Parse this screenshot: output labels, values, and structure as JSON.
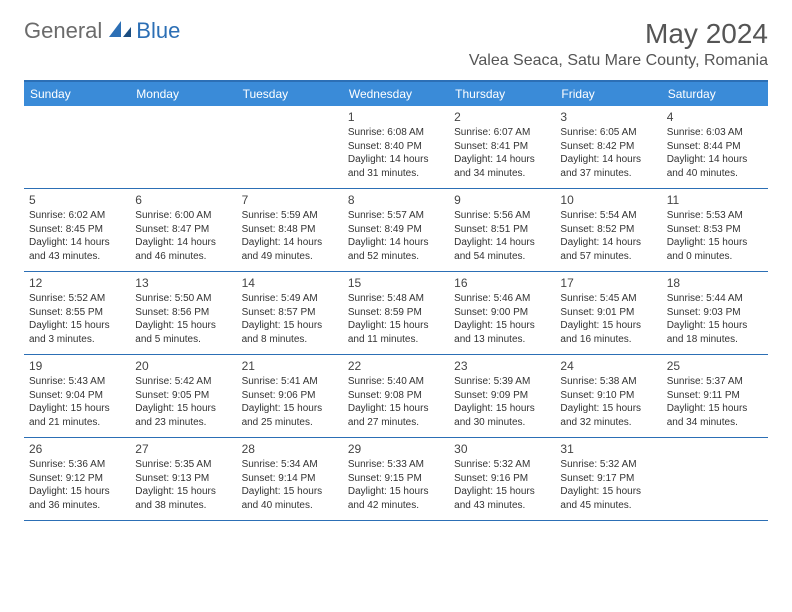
{
  "logo": {
    "general": "General",
    "blue": "Blue"
  },
  "title": "May 2024",
  "location": "Valea Seaca, Satu Mare County, Romania",
  "colors": {
    "header_bg": "#3a8bd8",
    "header_border": "#2c6fb5",
    "logo_gray": "#6b6b6b",
    "logo_blue": "#2c6fb5",
    "text": "#333333",
    "title_text": "#555555"
  },
  "day_headers": [
    "Sunday",
    "Monday",
    "Tuesday",
    "Wednesday",
    "Thursday",
    "Friday",
    "Saturday"
  ],
  "weeks": [
    [
      null,
      null,
      null,
      {
        "num": "1",
        "sunrise": "Sunrise: 6:08 AM",
        "sunset": "Sunset: 8:40 PM",
        "day1": "Daylight: 14 hours",
        "day2": "and 31 minutes."
      },
      {
        "num": "2",
        "sunrise": "Sunrise: 6:07 AM",
        "sunset": "Sunset: 8:41 PM",
        "day1": "Daylight: 14 hours",
        "day2": "and 34 minutes."
      },
      {
        "num": "3",
        "sunrise": "Sunrise: 6:05 AM",
        "sunset": "Sunset: 8:42 PM",
        "day1": "Daylight: 14 hours",
        "day2": "and 37 minutes."
      },
      {
        "num": "4",
        "sunrise": "Sunrise: 6:03 AM",
        "sunset": "Sunset: 8:44 PM",
        "day1": "Daylight: 14 hours",
        "day2": "and 40 minutes."
      }
    ],
    [
      {
        "num": "5",
        "sunrise": "Sunrise: 6:02 AM",
        "sunset": "Sunset: 8:45 PM",
        "day1": "Daylight: 14 hours",
        "day2": "and 43 minutes."
      },
      {
        "num": "6",
        "sunrise": "Sunrise: 6:00 AM",
        "sunset": "Sunset: 8:47 PM",
        "day1": "Daylight: 14 hours",
        "day2": "and 46 minutes."
      },
      {
        "num": "7",
        "sunrise": "Sunrise: 5:59 AM",
        "sunset": "Sunset: 8:48 PM",
        "day1": "Daylight: 14 hours",
        "day2": "and 49 minutes."
      },
      {
        "num": "8",
        "sunrise": "Sunrise: 5:57 AM",
        "sunset": "Sunset: 8:49 PM",
        "day1": "Daylight: 14 hours",
        "day2": "and 52 minutes."
      },
      {
        "num": "9",
        "sunrise": "Sunrise: 5:56 AM",
        "sunset": "Sunset: 8:51 PM",
        "day1": "Daylight: 14 hours",
        "day2": "and 54 minutes."
      },
      {
        "num": "10",
        "sunrise": "Sunrise: 5:54 AM",
        "sunset": "Sunset: 8:52 PM",
        "day1": "Daylight: 14 hours",
        "day2": "and 57 minutes."
      },
      {
        "num": "11",
        "sunrise": "Sunrise: 5:53 AM",
        "sunset": "Sunset: 8:53 PM",
        "day1": "Daylight: 15 hours",
        "day2": "and 0 minutes."
      }
    ],
    [
      {
        "num": "12",
        "sunrise": "Sunrise: 5:52 AM",
        "sunset": "Sunset: 8:55 PM",
        "day1": "Daylight: 15 hours",
        "day2": "and 3 minutes."
      },
      {
        "num": "13",
        "sunrise": "Sunrise: 5:50 AM",
        "sunset": "Sunset: 8:56 PM",
        "day1": "Daylight: 15 hours",
        "day2": "and 5 minutes."
      },
      {
        "num": "14",
        "sunrise": "Sunrise: 5:49 AM",
        "sunset": "Sunset: 8:57 PM",
        "day1": "Daylight: 15 hours",
        "day2": "and 8 minutes."
      },
      {
        "num": "15",
        "sunrise": "Sunrise: 5:48 AM",
        "sunset": "Sunset: 8:59 PM",
        "day1": "Daylight: 15 hours",
        "day2": "and 11 minutes."
      },
      {
        "num": "16",
        "sunrise": "Sunrise: 5:46 AM",
        "sunset": "Sunset: 9:00 PM",
        "day1": "Daylight: 15 hours",
        "day2": "and 13 minutes."
      },
      {
        "num": "17",
        "sunrise": "Sunrise: 5:45 AM",
        "sunset": "Sunset: 9:01 PM",
        "day1": "Daylight: 15 hours",
        "day2": "and 16 minutes."
      },
      {
        "num": "18",
        "sunrise": "Sunrise: 5:44 AM",
        "sunset": "Sunset: 9:03 PM",
        "day1": "Daylight: 15 hours",
        "day2": "and 18 minutes."
      }
    ],
    [
      {
        "num": "19",
        "sunrise": "Sunrise: 5:43 AM",
        "sunset": "Sunset: 9:04 PM",
        "day1": "Daylight: 15 hours",
        "day2": "and 21 minutes."
      },
      {
        "num": "20",
        "sunrise": "Sunrise: 5:42 AM",
        "sunset": "Sunset: 9:05 PM",
        "day1": "Daylight: 15 hours",
        "day2": "and 23 minutes."
      },
      {
        "num": "21",
        "sunrise": "Sunrise: 5:41 AM",
        "sunset": "Sunset: 9:06 PM",
        "day1": "Daylight: 15 hours",
        "day2": "and 25 minutes."
      },
      {
        "num": "22",
        "sunrise": "Sunrise: 5:40 AM",
        "sunset": "Sunset: 9:08 PM",
        "day1": "Daylight: 15 hours",
        "day2": "and 27 minutes."
      },
      {
        "num": "23",
        "sunrise": "Sunrise: 5:39 AM",
        "sunset": "Sunset: 9:09 PM",
        "day1": "Daylight: 15 hours",
        "day2": "and 30 minutes."
      },
      {
        "num": "24",
        "sunrise": "Sunrise: 5:38 AM",
        "sunset": "Sunset: 9:10 PM",
        "day1": "Daylight: 15 hours",
        "day2": "and 32 minutes."
      },
      {
        "num": "25",
        "sunrise": "Sunrise: 5:37 AM",
        "sunset": "Sunset: 9:11 PM",
        "day1": "Daylight: 15 hours",
        "day2": "and 34 minutes."
      }
    ],
    [
      {
        "num": "26",
        "sunrise": "Sunrise: 5:36 AM",
        "sunset": "Sunset: 9:12 PM",
        "day1": "Daylight: 15 hours",
        "day2": "and 36 minutes."
      },
      {
        "num": "27",
        "sunrise": "Sunrise: 5:35 AM",
        "sunset": "Sunset: 9:13 PM",
        "day1": "Daylight: 15 hours",
        "day2": "and 38 minutes."
      },
      {
        "num": "28",
        "sunrise": "Sunrise: 5:34 AM",
        "sunset": "Sunset: 9:14 PM",
        "day1": "Daylight: 15 hours",
        "day2": "and 40 minutes."
      },
      {
        "num": "29",
        "sunrise": "Sunrise: 5:33 AM",
        "sunset": "Sunset: 9:15 PM",
        "day1": "Daylight: 15 hours",
        "day2": "and 42 minutes."
      },
      {
        "num": "30",
        "sunrise": "Sunrise: 5:32 AM",
        "sunset": "Sunset: 9:16 PM",
        "day1": "Daylight: 15 hours",
        "day2": "and 43 minutes."
      },
      {
        "num": "31",
        "sunrise": "Sunrise: 5:32 AM",
        "sunset": "Sunset: 9:17 PM",
        "day1": "Daylight: 15 hours",
        "day2": "and 45 minutes."
      },
      null
    ]
  ]
}
